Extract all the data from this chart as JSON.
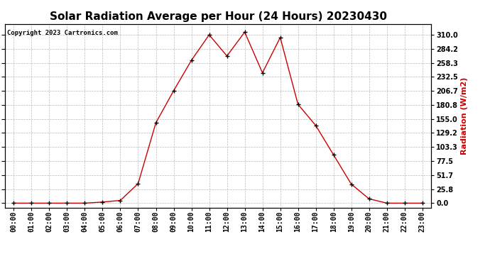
{
  "title": "Solar Radiation Average per Hour (24 Hours) 20230430",
  "copyright": "Copyright 2023 Cartronics.com",
  "ylabel": "Radiation (W/m2)",
  "hours": [
    "00:00",
    "01:00",
    "02:00",
    "03:00",
    "04:00",
    "05:00",
    "06:00",
    "07:00",
    "08:00",
    "09:00",
    "10:00",
    "11:00",
    "12:00",
    "13:00",
    "14:00",
    "15:00",
    "16:00",
    "17:00",
    "18:00",
    "19:00",
    "20:00",
    "21:00",
    "22:00",
    "23:00"
  ],
  "values": [
    0.0,
    0.0,
    0.0,
    0.0,
    0.0,
    2.0,
    5.0,
    36.0,
    148.0,
    207.0,
    263.0,
    310.0,
    271.0,
    315.0,
    240.0,
    305.0,
    182.0,
    143.0,
    89.0,
    35.0,
    8.0,
    0.0,
    0.0,
    0.0
  ],
  "line_color": "#cc0000",
  "marker_color": "#000000",
  "grid_color": "#bbbbbb",
  "background_color": "#ffffff",
  "title_fontsize": 11,
  "label_fontsize": 8,
  "tick_fontsize": 7,
  "yticks": [
    0.0,
    25.8,
    51.7,
    77.5,
    103.3,
    129.2,
    155.0,
    180.8,
    206.7,
    232.5,
    258.3,
    284.2,
    310.0
  ],
  "ylim": [
    -8,
    330
  ],
  "ylabel_color": "#cc0000",
  "copyright_color": "#000000"
}
